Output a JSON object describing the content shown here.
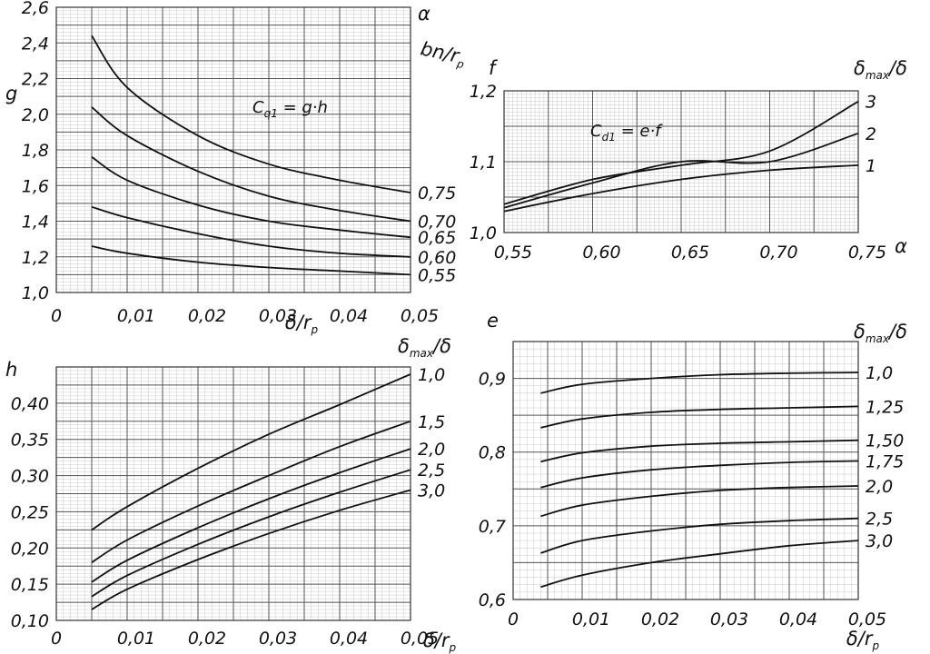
{
  "chart_data": [
    {
      "id": "g",
      "type": "line",
      "title": "",
      "formula": {
        "main": "C",
        "sub": "q1",
        "rest": " = g·h"
      },
      "ylabel": "g",
      "xlabel": {
        "main": "δ/r",
        "sub": "p"
      },
      "param_label": {
        "main": "α",
        "sub": "",
        "line2_main": "bn/r",
        "line2_sub": "p"
      },
      "xlim": [
        0,
        0.05
      ],
      "ylim": [
        1.0,
        2.6
      ],
      "xticks": [
        "0",
        "0,01",
        "0,02",
        "0,03",
        "0,04",
        "0,05"
      ],
      "yticks": [
        "1,0",
        "1,2",
        "1,4",
        "1,6",
        "1,8",
        "2,0",
        "2,2",
        "2,4",
        "2,6"
      ],
      "grid": true,
      "series": [
        {
          "name": "0,75",
          "x": [
            0.005,
            0.01,
            0.02,
            0.03,
            0.04,
            0.05
          ],
          "y": [
            2.44,
            2.15,
            1.88,
            1.72,
            1.63,
            1.56
          ]
        },
        {
          "name": "0,70",
          "x": [
            0.005,
            0.01,
            0.02,
            0.03,
            0.04,
            0.05
          ],
          "y": [
            2.04,
            1.88,
            1.68,
            1.54,
            1.46,
            1.4
          ]
        },
        {
          "name": "0,65",
          "x": [
            0.005,
            0.01,
            0.02,
            0.03,
            0.04,
            0.05
          ],
          "y": [
            1.76,
            1.63,
            1.49,
            1.4,
            1.35,
            1.31
          ]
        },
        {
          "name": "0,60",
          "x": [
            0.005,
            0.01,
            0.02,
            0.03,
            0.04,
            0.05
          ],
          "y": [
            1.48,
            1.42,
            1.33,
            1.26,
            1.22,
            1.2
          ]
        },
        {
          "name": "0,55",
          "x": [
            0.005,
            0.01,
            0.02,
            0.03,
            0.04,
            0.05
          ],
          "y": [
            1.26,
            1.22,
            1.17,
            1.14,
            1.12,
            1.1
          ]
        }
      ]
    },
    {
      "id": "h",
      "type": "line",
      "title": "",
      "ylabel": "h",
      "xlabel": {
        "main": "δ/r",
        "sub": "p"
      },
      "param_label": {
        "main": "δ",
        "sub": "max",
        "rest": "/δ"
      },
      "xlim": [
        0,
        0.05
      ],
      "ylim": [
        0.1,
        0.45
      ],
      "xticks": [
        "0",
        "0,01",
        "0,02",
        "0,03",
        "0,04",
        "0,05"
      ],
      "yticks": [
        "0,10",
        "0,15",
        "0,20",
        "0,25",
        "0,30",
        "0,35",
        "0,40"
      ],
      "grid": true,
      "series": [
        {
          "name": "1,0",
          "x": [
            0.005,
            0.01,
            0.02,
            0.03,
            0.04,
            0.05
          ],
          "y": [
            0.225,
            0.257,
            0.31,
            0.357,
            0.398,
            0.44
          ]
        },
        {
          "name": "1,5",
          "x": [
            0.005,
            0.01,
            0.02,
            0.03,
            0.04,
            0.05
          ],
          "y": [
            0.18,
            0.211,
            0.258,
            0.3,
            0.34,
            0.375
          ]
        },
        {
          "name": "2,0",
          "x": [
            0.005,
            0.01,
            0.02,
            0.03,
            0.04,
            0.05
          ],
          "y": [
            0.153,
            0.183,
            0.228,
            0.268,
            0.304,
            0.337
          ]
        },
        {
          "name": "2,5",
          "x": [
            0.005,
            0.01,
            0.02,
            0.03,
            0.04,
            0.05
          ],
          "y": [
            0.133,
            0.162,
            0.205,
            0.243,
            0.277,
            0.308
          ]
        },
        {
          "name": "3,0",
          "x": [
            0.005,
            0.01,
            0.02,
            0.03,
            0.04,
            0.05
          ],
          "y": [
            0.115,
            0.143,
            0.184,
            0.22,
            0.252,
            0.28
          ]
        }
      ]
    },
    {
      "id": "f",
      "type": "line",
      "title": "",
      "formula": {
        "main": "C",
        "sub": "d1",
        "rest": " = e·f"
      },
      "ylabel": "f",
      "xlabel": {
        "main": "α",
        "sub": ""
      },
      "param_label": {
        "main": "δ",
        "sub": "max",
        "rest": "/δ"
      },
      "xlim": [
        0.55,
        0.75
      ],
      "ylim": [
        1.0,
        1.2
      ],
      "xticks": [
        "0,55",
        "0,60",
        "0,65",
        "0,70",
        "0,75"
      ],
      "yticks": [
        "1,0",
        "1,1",
        "1,2"
      ],
      "grid": true,
      "series": [
        {
          "name": "3",
          "x": [
            0.55,
            0.6,
            0.65,
            0.7,
            0.75
          ],
          "y": [
            1.04,
            1.075,
            1.095,
            1.115,
            1.185
          ]
        },
        {
          "name": "2",
          "x": [
            0.55,
            0.6,
            0.65,
            0.7,
            0.75
          ],
          "y": [
            1.035,
            1.07,
            1.1,
            1.1,
            1.14
          ]
        },
        {
          "name": "1",
          "x": [
            0.55,
            0.6,
            0.65,
            0.7,
            0.75
          ],
          "y": [
            1.03,
            1.055,
            1.075,
            1.088,
            1.095
          ]
        }
      ]
    },
    {
      "id": "e",
      "type": "line",
      "title": "",
      "ylabel": "e",
      "xlabel": {
        "main": "δ/r",
        "sub": "p"
      },
      "param_label": {
        "main": "δ",
        "sub": "max",
        "rest": "/δ"
      },
      "xlim": [
        0,
        0.05
      ],
      "ylim": [
        0.6,
        0.95
      ],
      "xticks": [
        "0",
        "0,01",
        "0,02",
        "0,03",
        "0,04",
        "0,05"
      ],
      "yticks": [
        "0,6",
        "0,7",
        "0,8",
        "0,9"
      ],
      "grid": true,
      "series": [
        {
          "name": "1,0",
          "x": [
            0.004,
            0.01,
            0.02,
            0.03,
            0.04,
            0.05
          ],
          "y": [
            0.88,
            0.892,
            0.9,
            0.905,
            0.907,
            0.908
          ]
        },
        {
          "name": "1,25",
          "x": [
            0.004,
            0.01,
            0.02,
            0.03,
            0.04,
            0.05
          ],
          "y": [
            0.833,
            0.845,
            0.854,
            0.858,
            0.86,
            0.862
          ]
        },
        {
          "name": "1,50",
          "x": [
            0.004,
            0.01,
            0.02,
            0.03,
            0.04,
            0.05
          ],
          "y": [
            0.787,
            0.799,
            0.808,
            0.812,
            0.814,
            0.816
          ]
        },
        {
          "name": "1,75",
          "x": [
            0.004,
            0.01,
            0.02,
            0.03,
            0.04,
            0.05
          ],
          "y": [
            0.752,
            0.765,
            0.776,
            0.782,
            0.786,
            0.788
          ]
        },
        {
          "name": "2,0",
          "x": [
            0.004,
            0.01,
            0.02,
            0.03,
            0.04,
            0.05
          ],
          "y": [
            0.713,
            0.728,
            0.74,
            0.748,
            0.752,
            0.754
          ]
        },
        {
          "name": "2,5",
          "x": [
            0.004,
            0.01,
            0.02,
            0.03,
            0.04,
            0.05
          ],
          "y": [
            0.663,
            0.68,
            0.693,
            0.702,
            0.707,
            0.71
          ]
        },
        {
          "name": "3,0",
          "x": [
            0.004,
            0.01,
            0.02,
            0.03,
            0.04,
            0.05
          ],
          "y": [
            0.617,
            0.633,
            0.65,
            0.662,
            0.673,
            0.68
          ]
        }
      ]
    }
  ]
}
